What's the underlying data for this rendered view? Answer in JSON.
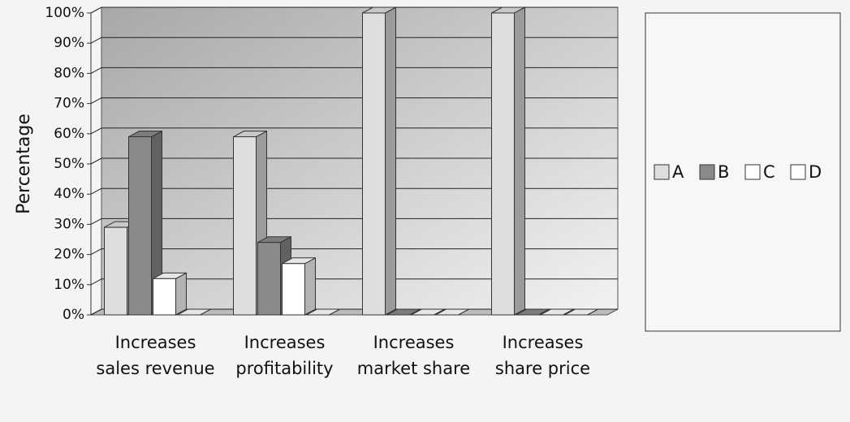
{
  "chart_data": {
    "type": "bar3d",
    "ylabel": "Percentage",
    "categories": [
      "Increases sales revenue",
      "Increases profitability",
      "Increases market share",
      "Increases share price"
    ],
    "series": [
      {
        "name": "A",
        "color": "#dedede",
        "values": [
          29,
          59,
          100,
          100
        ]
      },
      {
        "name": "B",
        "color": "#8a8a8a",
        "values": [
          59,
          24,
          0,
          0
        ]
      },
      {
        "name": "C",
        "color": "#ffffff",
        "values": [
          12,
          17,
          0,
          0
        ]
      },
      {
        "name": "D",
        "color": "#ffffff",
        "values": [
          0,
          0,
          0,
          0
        ]
      }
    ],
    "ylim": [
      0,
      100
    ],
    "yticks": [
      {
        "value": 0,
        "label": "0%"
      },
      {
        "value": 10,
        "label": "10%"
      },
      {
        "value": 20,
        "label": "20%"
      },
      {
        "value": 30,
        "label": "30%"
      },
      {
        "value": 40,
        "label": "40%"
      },
      {
        "value": 50,
        "label": "50%"
      },
      {
        "value": 60,
        "label": "60%"
      },
      {
        "value": 70,
        "label": "70%"
      },
      {
        "value": 80,
        "label": "80%"
      },
      {
        "value": 90,
        "label": "90%"
      },
      {
        "value": 100,
        "label": "100%"
      }
    ],
    "grid": true,
    "legend": "right"
  }
}
